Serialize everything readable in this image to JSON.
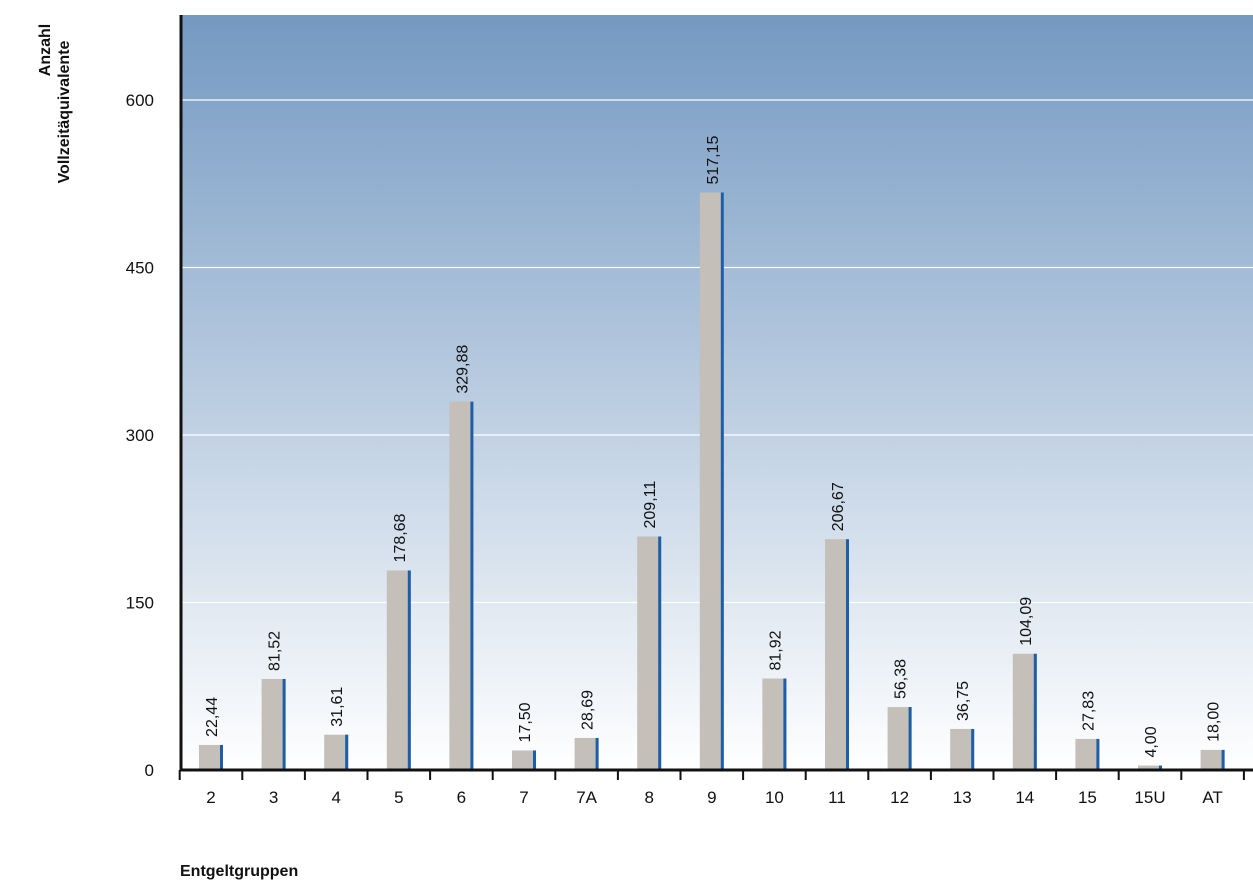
{
  "chart_data": {
    "type": "bar",
    "title": "",
    "xlabel": "Entgeltgruppen",
    "ylabel_lines": [
      "Anzahl",
      "Vollzeitäquivalente"
    ],
    "categories": [
      "2",
      "3",
      "4",
      "5",
      "6",
      "7",
      "7A",
      "8",
      "9",
      "10",
      "11",
      "12",
      "13",
      "14",
      "15",
      "15U",
      "AT"
    ],
    "values": [
      22.44,
      81.52,
      31.61,
      178.68,
      329.88,
      17.5,
      28.69,
      209.11,
      517.15,
      81.92,
      206.67,
      56.38,
      36.75,
      104.09,
      27.83,
      4.0,
      18.0
    ],
    "value_labels": [
      "22,44",
      "81,52",
      "31,61",
      "178,68",
      "329,88",
      "17,50",
      "28,69",
      "209,11",
      "517,15",
      "81,92",
      "206,67",
      "56,38",
      "36,75",
      "104,09",
      "27,83",
      "4,00",
      "18,00"
    ],
    "ylim": [
      0,
      600
    ],
    "yticks": [
      0,
      150,
      300,
      450,
      600
    ],
    "ytick_labels": [
      "0",
      "150",
      "300",
      "450",
      "600"
    ],
    "grid": true,
    "colors": {
      "bar_fill": "#c4bfb9",
      "bar_edge": "#1c5ea8",
      "bg_top": "#7499c2",
      "bg_bottom": "#ffffff",
      "gridline": "#ffffff",
      "axis": "#111111"
    }
  }
}
